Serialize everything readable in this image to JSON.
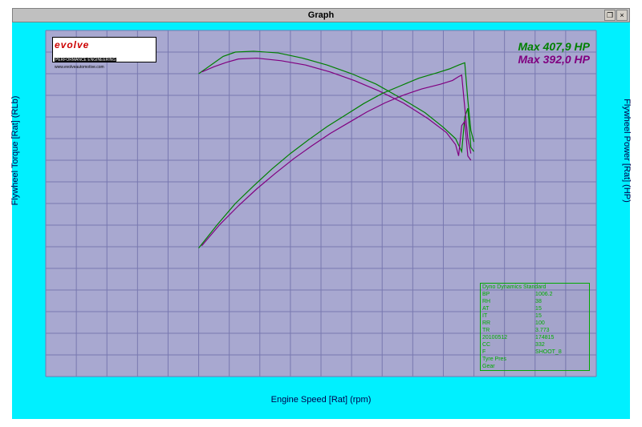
{
  "window": {
    "title": "Graph"
  },
  "chart": {
    "type": "line",
    "background_color": "#a8a8d0",
    "frame_color": "#00f0ff",
    "grid_color": "#7878b0",
    "xlabel": "Engine Speed [Rat] (rpm)",
    "ylabel_left": "Flywheel Torque [Rat] (RLb)",
    "ylabel_right": "Flywheel Power [Rat] (HP)",
    "xlim": [
      0,
      9000
    ],
    "xtick_step": 500,
    "ylim_left": [
      0,
      400
    ],
    "ytick_step_left": 25,
    "ylim_right": [
      0,
      450
    ],
    "ytick_step_right": 25,
    "label_fontsize": 11,
    "tick_fontsize": 10,
    "tick_color": "#00f0ff",
    "series": [
      {
        "name": "run1_torque",
        "axis": "left",
        "color": "#008000",
        "line_width": 1.2,
        "points": [
          [
            2500,
            350
          ],
          [
            2700,
            360
          ],
          [
            2900,
            370
          ],
          [
            3100,
            375
          ],
          [
            3400,
            376
          ],
          [
            3800,
            374
          ],
          [
            4200,
            368
          ],
          [
            4600,
            360
          ],
          [
            5000,
            350
          ],
          [
            5400,
            338
          ],
          [
            5800,
            322
          ],
          [
            6200,
            305
          ],
          [
            6500,
            288
          ],
          [
            6700,
            275
          ],
          [
            6800,
            260
          ],
          [
            6850,
            300
          ],
          [
            6900,
            310
          ],
          [
            6950,
            265
          ],
          [
            7000,
            260
          ]
        ]
      },
      {
        "name": "run2_torque",
        "axis": "left",
        "color": "#800080",
        "line_width": 1.2,
        "points": [
          [
            2550,
            352
          ],
          [
            2750,
            358
          ],
          [
            2950,
            363
          ],
          [
            3150,
            367
          ],
          [
            3450,
            368
          ],
          [
            3850,
            365
          ],
          [
            4250,
            360
          ],
          [
            4650,
            352
          ],
          [
            5050,
            342
          ],
          [
            5450,
            330
          ],
          [
            5850,
            316
          ],
          [
            6250,
            298
          ],
          [
            6550,
            282
          ],
          [
            6700,
            268
          ],
          [
            6750,
            255
          ],
          [
            6800,
            290
          ],
          [
            6850,
            295
          ],
          [
            6900,
            255
          ],
          [
            6950,
            250
          ]
        ]
      },
      {
        "name": "run1_power",
        "axis": "right",
        "color": "#008000",
        "line_width": 1.2,
        "points": [
          [
            2500,
            167
          ],
          [
            2800,
            197
          ],
          [
            3100,
            225
          ],
          [
            3400,
            248
          ],
          [
            3700,
            270
          ],
          [
            4000,
            290
          ],
          [
            4300,
            308
          ],
          [
            4600,
            325
          ],
          [
            4900,
            340
          ],
          [
            5200,
            355
          ],
          [
            5500,
            368
          ],
          [
            5800,
            378
          ],
          [
            6100,
            388
          ],
          [
            6400,
            395
          ],
          [
            6600,
            400
          ],
          [
            6750,
            405
          ],
          [
            6850,
            408
          ],
          [
            6900,
            360
          ],
          [
            6950,
            320
          ],
          [
            7000,
            305
          ]
        ]
      },
      {
        "name": "run2_power",
        "axis": "right",
        "color": "#800080",
        "line_width": 1.2,
        "points": [
          [
            2550,
            170
          ],
          [
            2850,
            198
          ],
          [
            3150,
            222
          ],
          [
            3450,
            244
          ],
          [
            3750,
            264
          ],
          [
            4050,
            283
          ],
          [
            4350,
            300
          ],
          [
            4650,
            316
          ],
          [
            4950,
            330
          ],
          [
            5250,
            344
          ],
          [
            5550,
            356
          ],
          [
            5850,
            366
          ],
          [
            6150,
            374
          ],
          [
            6450,
            380
          ],
          [
            6650,
            385
          ],
          [
            6750,
            390
          ],
          [
            6800,
            392
          ],
          [
            6850,
            350
          ],
          [
            6900,
            310
          ],
          [
            6950,
            290
          ]
        ]
      }
    ]
  },
  "legend": {
    "entries": [
      {
        "label": "Max 407,9 HP",
        "color": "#008000"
      },
      {
        "label": "Max 392,0 HP",
        "color": "#800080"
      }
    ]
  },
  "logo": {
    "brand": "evolve",
    "subtitle": "PERFORMANCE ENGINEERING",
    "url": "www.evolveautomotive.com"
  },
  "infobox": {
    "header": "Dyno Dynamics Standard",
    "rows": [
      [
        "BP",
        "1006.2"
      ],
      [
        "RH",
        "38"
      ],
      [
        "AT",
        "15"
      ],
      [
        "IT",
        "15"
      ],
      [
        "RR",
        "100"
      ],
      [
        "TR",
        "3.773"
      ],
      [
        "20100512",
        "174815"
      ],
      [
        "CC",
        "332"
      ],
      [
        "F",
        "SHOOT_8"
      ],
      [
        "Tyre Pres",
        ""
      ],
      [
        "Gear",
        ""
      ]
    ]
  }
}
